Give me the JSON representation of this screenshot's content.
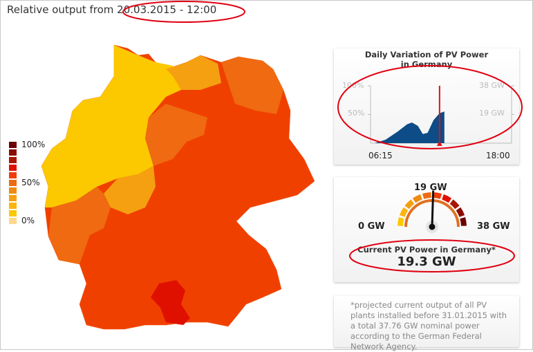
{
  "header": {
    "title": "Relative output from 20.03.2015 - 12:00"
  },
  "legend": {
    "labels": [
      "100%",
      "50%",
      "0%"
    ],
    "colors": [
      "#6b0000",
      "#8b0a00",
      "#a81500",
      "#e01000",
      "#f03c0a",
      "#ef6a10",
      "#f08a10",
      "#f5a010",
      "#fab510",
      "#fcc800",
      "#fcd98a"
    ]
  },
  "map": {
    "colors": {
      "base": "#f04000",
      "yellow": "#fcc800",
      "light_orange": "#f5a010",
      "orange": "#ef6a10",
      "red": "#e01000"
    }
  },
  "daily_chart": {
    "title_line1": "Daily Variation of PV Power",
    "title_line2": "in Germany",
    "left_ticks": [
      "100%",
      "50%"
    ],
    "right_ticks": [
      "38 GW",
      "19 GW"
    ],
    "x_start": "06:15",
    "x_end": "18:00",
    "chart_data": {
      "type": "area",
      "x_range_hours": [
        6.25,
        18.0
      ],
      "y_range_percent": [
        0,
        100
      ],
      "current_time_hours": 12.0,
      "x": [
        6.6,
        7.5,
        8.5,
        9.3,
        9.7,
        10.2,
        10.6,
        11.0,
        11.5,
        12.0,
        12.4
      ],
      "y": [
        0,
        6,
        20,
        33,
        36,
        30,
        16,
        18,
        40,
        52,
        55
      ],
      "color": "#0d4c86",
      "marker_color": "#e01010"
    }
  },
  "gauge": {
    "min_label": "0 GW",
    "mid_label": "19 GW",
    "max_label": "38 GW",
    "value_fraction": 0.51,
    "current_label": "Current PV Power in Germany*",
    "current_value": "19.3 GW"
  },
  "footnote": "*projected current output of all PV plants installed before 31.01.2015 with a total 37.76 GW nominal power according to the German Federal Network Agency."
}
